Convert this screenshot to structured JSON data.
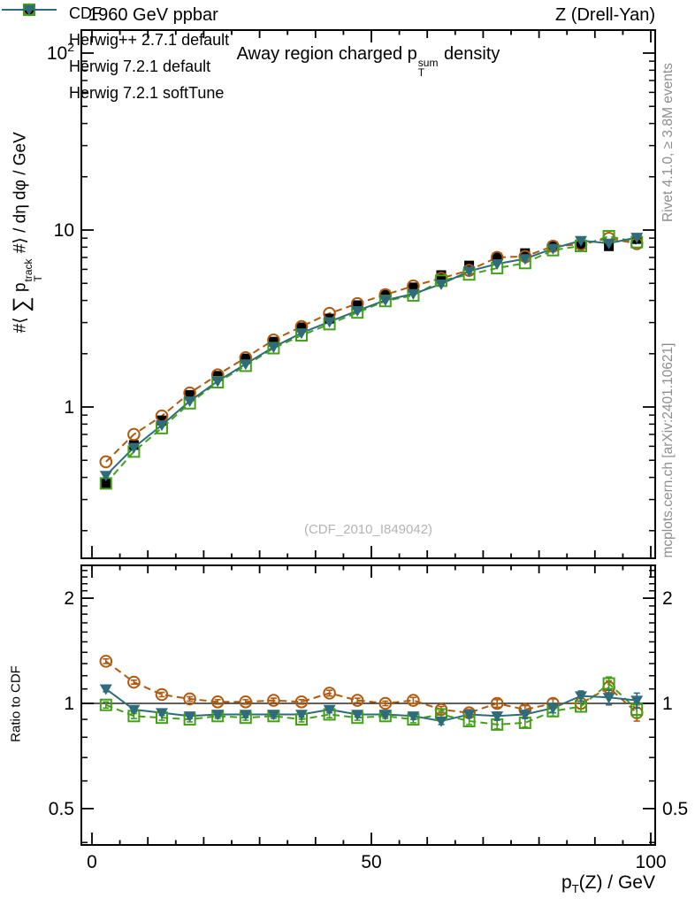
{
  "header": {
    "left": "1960 GeV ppbar",
    "right": "Z (Drell-Yan)"
  },
  "title": {
    "t1": "Away region charged p",
    "sup": "sum",
    "sub": "T",
    "t2": " density"
  },
  "side_notes": {
    "top_right": "Rivet 4.1.0, ≥ 3.8M events",
    "bottom_right": "mcplots.cern.ch [arXiv:2401.10621]"
  },
  "watermark": "(CDF_2010_I849042)",
  "axes": {
    "y_main_label": {
      "l1": "#⟨ ",
      "sigma": "∑",
      "l2": " p",
      "sup": "track",
      "sub": "T",
      "l3": " #⟩ / dη dφ / GeV"
    },
    "ratio_label": "Ratio to CDF",
    "x_label": {
      "x1": "p",
      "sub": "T",
      "x2": "(Z) / GeV"
    }
  },
  "legend": [
    {
      "label": "CDF",
      "marker": "filled-square",
      "color": "#000000",
      "line": "none"
    },
    {
      "label": "Herwig++ 2.7.1 default",
      "marker": "open-circle",
      "color": "#b05a10",
      "line": "dashed"
    },
    {
      "label": "Herwig 7.2.1 default",
      "marker": "open-square",
      "color": "#44a019",
      "line": "dashed"
    },
    {
      "label": "Herwig 7.2.1 softTune",
      "marker": "filled-triangle-down",
      "color": "#2e6c7c",
      "line": "solid"
    }
  ],
  "chart_data": {
    "type": "line",
    "title": "Away region charged pT^sum density",
    "xlabel": "pT(Z) / GeV",
    "ylabel": "#<Sum pT^track #> / deta dphi / GeV",
    "ratio_ylabel": "Ratio to CDF",
    "legend_position": "top-left",
    "grid": false,
    "x": [
      2.5,
      7.5,
      12.5,
      17.5,
      22.5,
      27.5,
      32.5,
      37.5,
      42.5,
      47.5,
      52.5,
      57.5,
      62.5,
      67.5,
      72.5,
      77.5,
      82.5,
      87.5,
      92.5,
      97.5
    ],
    "x_bin_width": 5,
    "series": [
      {
        "name": "CDF",
        "role": "data",
        "marker": "filled-square",
        "color": "#000000",
        "line": "none",
        "rel_err": 0.03,
        "values": [
          0.37,
          0.61,
          0.84,
          1.17,
          1.5,
          1.88,
          2.34,
          2.82,
          3.16,
          3.76,
          4.31,
          4.74,
          5.56,
          6.3,
          7.0,
          7.4,
          8.1,
          8.3,
          8.1,
          8.9
        ]
      },
      {
        "name": "Herwig++ 2.7.1 default",
        "role": "mc",
        "marker": "open-circle",
        "color": "#b05a10",
        "line": "dashed",
        "values": [
          0.49,
          0.7,
          0.89,
          1.2,
          1.52,
          1.9,
          2.39,
          2.85,
          3.38,
          3.84,
          4.31,
          4.83,
          5.34,
          5.92,
          7.0,
          7.1,
          8.1,
          8.3,
          8.99,
          8.37
        ],
        "ratio": [
          1.32,
          1.15,
          1.06,
          1.03,
          1.01,
          1.01,
          1.02,
          1.01,
          1.07,
          1.02,
          1.0,
          1.02,
          0.96,
          0.94,
          1.0,
          0.96,
          1.0,
          1.0,
          1.11,
          0.94
        ]
      },
      {
        "name": "Herwig 7.2.1 default",
        "role": "mc",
        "marker": "open-square",
        "color": "#44a019",
        "line": "dashed",
        "values": [
          0.37,
          0.56,
          0.76,
          1.05,
          1.38,
          1.71,
          2.15,
          2.54,
          2.94,
          3.42,
          3.97,
          4.27,
          5.17,
          5.61,
          6.09,
          6.51,
          7.7,
          8.13,
          9.23,
          8.54
        ],
        "ratio": [
          0.99,
          0.92,
          0.91,
          0.9,
          0.92,
          0.91,
          0.92,
          0.9,
          0.93,
          0.91,
          0.92,
          0.9,
          0.93,
          0.89,
          0.87,
          0.88,
          0.95,
          0.98,
          1.14,
          0.96
        ]
      },
      {
        "name": "Herwig 7.2.1 softTune",
        "role": "mc",
        "marker": "filled-triangle-down",
        "color": "#2e6c7c",
        "line": "solid",
        "values": [
          0.41,
          0.59,
          0.79,
          1.08,
          1.4,
          1.75,
          2.18,
          2.62,
          3.03,
          3.5,
          4.01,
          4.36,
          4.95,
          5.86,
          6.44,
          6.88,
          7.86,
          8.72,
          8.42,
          9.08
        ],
        "ratio": [
          1.1,
          0.96,
          0.94,
          0.92,
          0.93,
          0.93,
          0.93,
          0.93,
          0.96,
          0.93,
          0.93,
          0.92,
          0.89,
          0.93,
          0.92,
          0.93,
          0.97,
          1.05,
          1.04,
          1.02
        ]
      }
    ],
    "ratio_err": [
      0.02,
      0.015,
      0.015,
      0.015,
      0.015,
      0.015,
      0.015,
      0.015,
      0.02,
      0.015,
      0.015,
      0.02,
      0.02,
      0.02,
      0.025,
      0.025,
      0.03,
      0.035,
      0.05,
      0.05
    ],
    "axes_meta": {
      "x_range": [
        -1.9,
        100.8
      ],
      "x_ticks_labeled": [
        0,
        50,
        100
      ],
      "x_minor_step": 5,
      "y_main_scale": "log",
      "y_main_ticks": [
        1,
        10,
        100
      ],
      "y_main_range": [
        0.137,
        135
      ],
      "ratio_scale": "log",
      "ratio_ticks": [
        0.5,
        1,
        2
      ],
      "ratio_range": [
        0.394,
        2.48
      ],
      "ratio_ref_line": 1
    }
  }
}
